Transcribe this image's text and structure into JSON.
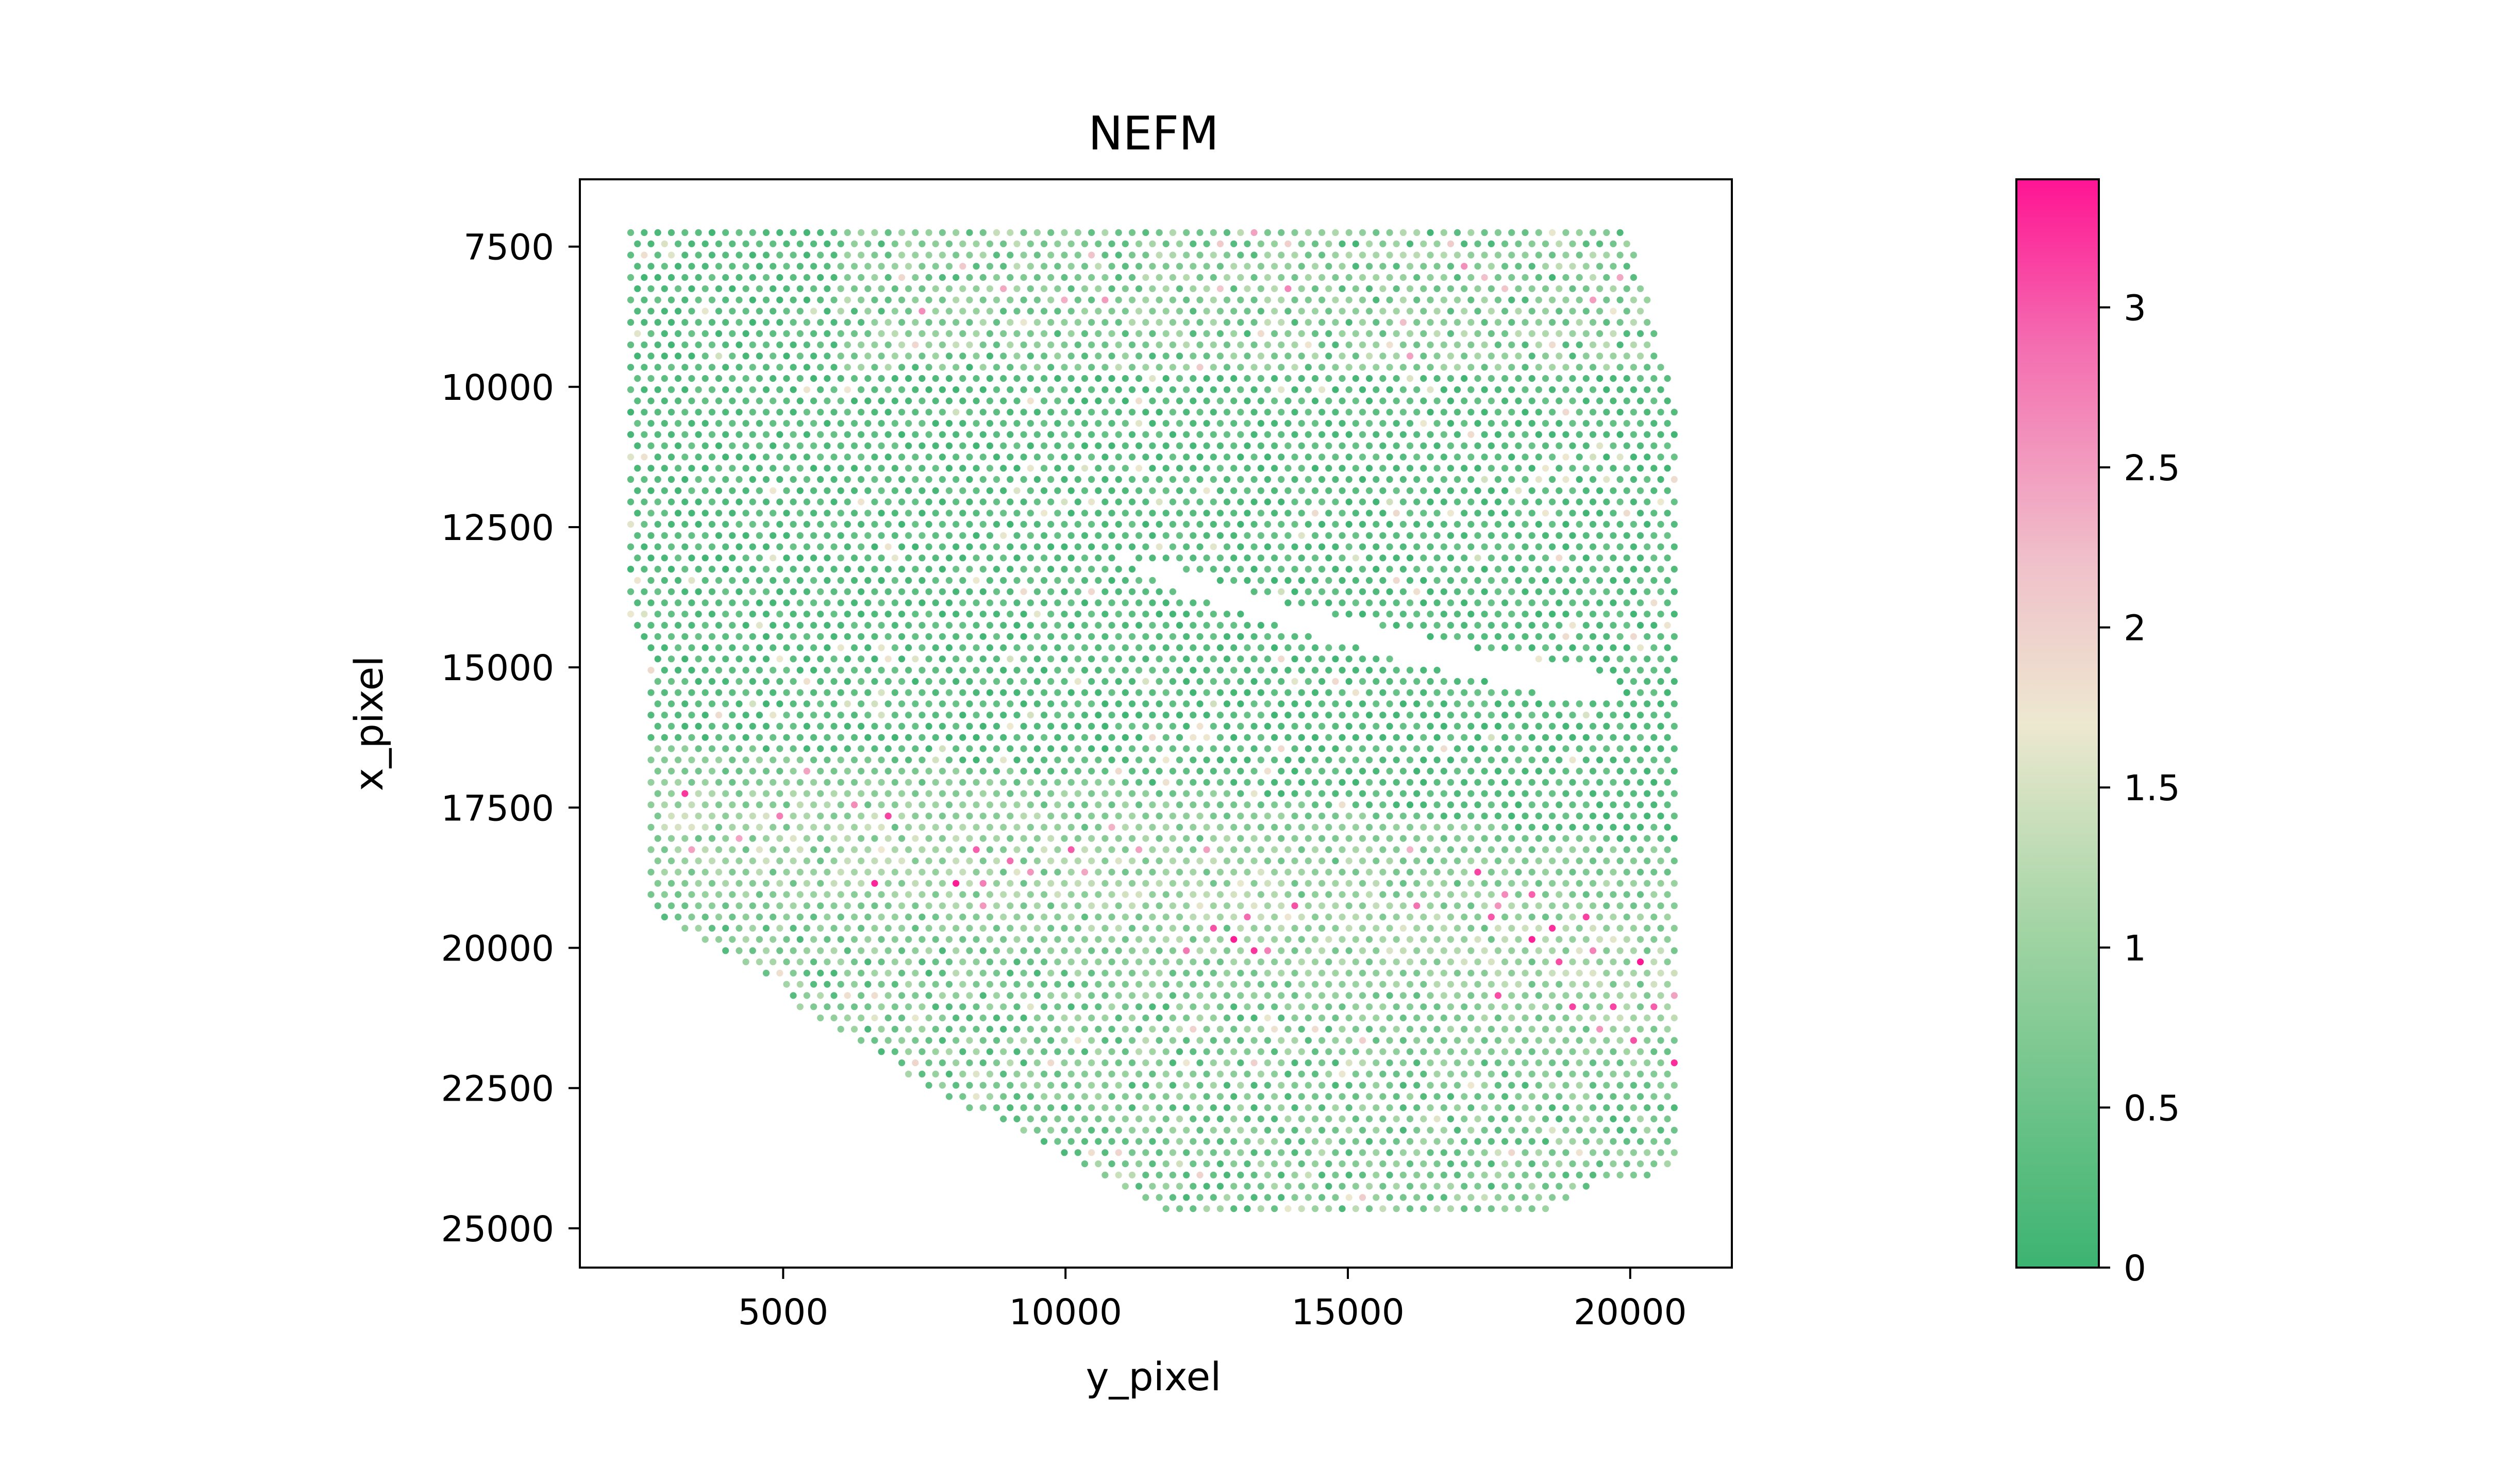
{
  "chart_data": {
    "type": "scatter",
    "title": "NEFM",
    "xlabel": "y_pixel",
    "ylabel": "x_pixel",
    "xlim": [
      1400,
      21800
    ],
    "ylim": [
      25700,
      6300
    ],
    "y_inverted": true,
    "x_ticks": [
      5000,
      10000,
      15000,
      20000
    ],
    "x_tick_labels": [
      "5000",
      "10000",
      "15000",
      "20000"
    ],
    "y_ticks": [
      7500,
      10000,
      12500,
      15000,
      17500,
      20000,
      22500,
      25000
    ],
    "y_tick_labels": [
      "7500",
      "10000",
      "12500",
      "15000",
      "17500",
      "20000",
      "22500",
      "25000"
    ],
    "grid": false,
    "spot_grid": {
      "x_start": 2300,
      "x_end": 20800,
      "y_start": 7250,
      "y_end": 24800,
      "row_spacing": 200,
      "col_spacing": 240,
      "stagger": true
    },
    "tissue_boundary": [
      [
        2200,
        7250
      ],
      [
        20000,
        7250
      ],
      [
        20800,
        10400
      ],
      [
        20900,
        12500
      ],
      [
        20900,
        24000
      ],
      [
        19400,
        24200
      ],
      [
        18500,
        24800
      ],
      [
        12000,
        24900
      ],
      [
        9800,
        23600
      ],
      [
        7800,
        22600
      ],
      [
        6300,
        21700
      ],
      [
        5500,
        21300
      ],
      [
        4700,
        20500
      ],
      [
        3700,
        20000
      ],
      [
        2600,
        19400
      ],
      [
        2600,
        14700
      ],
      [
        2200,
        13900
      ]
    ],
    "holes": [
      [
        [
          10600,
          12900
        ],
        [
          12500,
          13400
        ],
        [
          14400,
          14000
        ],
        [
          17400,
          14700
        ],
        [
          19500,
          15100
        ],
        [
          20000,
          15600
        ],
        [
          18500,
          15500
        ],
        [
          16500,
          15000
        ],
        [
          14200,
          14400
        ],
        [
          12200,
          13700
        ]
      ]
    ],
    "high_expression_band": {
      "from": [
        [
          2700,
          16300
        ],
        [
          10000,
          16900
        ],
        [
          20800,
          18200
        ]
      ],
      "to": [
        [
          2700,
          19300
        ],
        [
          10000,
          20300
        ],
        [
          20800,
          22800
        ]
      ],
      "peak_value": 3.4
    },
    "colorbar": {
      "min": 0,
      "max": 3.4,
      "ticks": [
        0,
        0.5,
        1,
        1.5,
        2,
        2.5,
        3
      ],
      "tick_labels": [
        "0",
        "0.5",
        "1",
        "1.5",
        "2",
        "2.5",
        "3"
      ],
      "colormap": [
        [
          0.0,
          "#3cb371"
        ],
        [
          0.3,
          "#9ed3a2"
        ],
        [
          0.5,
          "#ede8d0"
        ],
        [
          0.65,
          "#f0c0ca"
        ],
        [
          0.85,
          "#f46cb0"
        ],
        [
          1.0,
          "#ff1493"
        ]
      ]
    }
  }
}
